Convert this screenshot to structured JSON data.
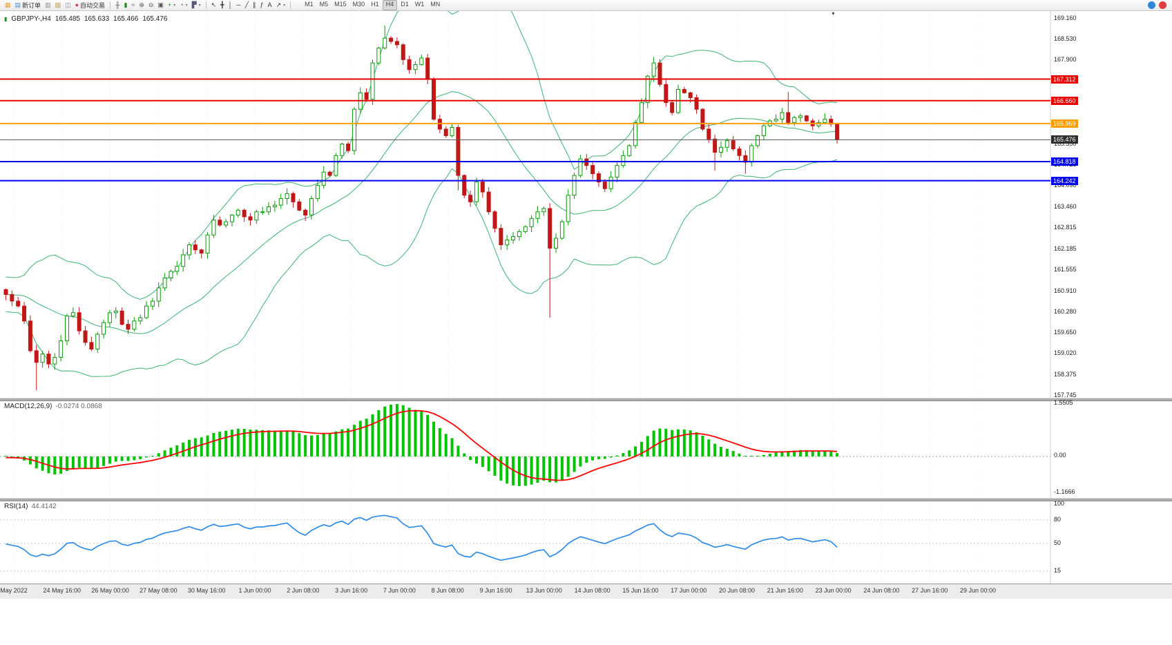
{
  "toolbar": {
    "file_group": [
      {
        "icon": "app-logo-icon",
        "name": "app-logo"
      },
      {
        "icon": "new-order-icon",
        "name": "new-order-button",
        "label": "新订单"
      },
      {
        "icon": "charts-icon",
        "name": "charts-button"
      },
      {
        "icon": "profiles-icon",
        "name": "profiles-button"
      },
      {
        "icon": "market-watch-icon",
        "name": "market-watch-button"
      },
      {
        "icon": "autotrading-icon",
        "name": "autotrading-button",
        "label": "自动交易"
      }
    ],
    "chart_group": [
      {
        "icon": "bar-chart-icon",
        "name": "bar-chart-button"
      },
      {
        "icon": "candlestick-icon",
        "name": "candlestick-button"
      },
      {
        "icon": "line-chart-icon",
        "name": "line-chart-button"
      },
      {
        "icon": "zoom-in-icon",
        "name": "zoom-in-button"
      },
      {
        "icon": "zoom-out-icon",
        "name": "zoom-out-button"
      },
      {
        "icon": "tile-windows-icon",
        "name": "tile-windows-button"
      },
      {
        "icon": "indicators-icon",
        "name": "indicators-button",
        "dropdown": true
      },
      {
        "icon": "periods-icon",
        "name": "periods-button",
        "dropdown": true
      },
      {
        "icon": "templates-icon",
        "name": "templates-button",
        "dropdown": true
      }
    ],
    "draw_group": [
      {
        "icon": "cursor-icon",
        "name": "cursor-button"
      },
      {
        "icon": "crosshair-icon",
        "name": "crosshair-button"
      },
      {
        "icon": "vertical-line-icon",
        "name": "vertical-line-button"
      },
      {
        "icon": "horizontal-line-icon",
        "name": "horizontal-line-button"
      },
      {
        "icon": "trendline-icon",
        "name": "trendline-button"
      },
      {
        "icon": "channel-icon",
        "name": "channel-button"
      },
      {
        "icon": "fibonacci-icon",
        "name": "fibonacci-button"
      },
      {
        "icon": "text-icon",
        "name": "text-button"
      },
      {
        "icon": "arrows-icon",
        "name": "arrows-button",
        "dropdown": true
      }
    ],
    "right_icons": [
      {
        "icon": "chat-icon",
        "name": "chat-button"
      },
      {
        "icon": "notification-icon",
        "name": "notification-button"
      }
    ]
  },
  "timeframes": {
    "items": [
      "M1",
      "M5",
      "M15",
      "M30",
      "H1",
      "H4",
      "D1",
      "W1",
      "MN"
    ],
    "active": "H4"
  },
  "symbol_header": {
    "symbol": "GBPJPY-,H4",
    "open": "165.485",
    "high": "165.633",
    "low": "165.466",
    "close": "165.476"
  },
  "indicators": {
    "macd": {
      "label": "MACD(12,26,9)",
      "values": "-0.0274 0.0868",
      "scale_top": "1.5505",
      "scale_zero": "0.00",
      "scale_bottom": "-1.1666"
    },
    "rsi": {
      "label": "RSI(14)",
      "value": "44.4142",
      "scale": [
        "100",
        "80",
        "50",
        "15"
      ]
    }
  },
  "price_axis": {
    "ticks": [
      "169.160",
      "168.530",
      "167.900",
      "165.350",
      "164.725",
      "164.090",
      "163.460",
      "162.815",
      "162.185",
      "161.555",
      "160.910",
      "160.280",
      "159.650",
      "159.020",
      "158.375",
      "157.745"
    ]
  },
  "levels": [
    {
      "label": "167.312",
      "value": 167.312,
      "color": "#E60000",
      "line_width": 2
    },
    {
      "label": "166.660",
      "value": 166.66,
      "color": "#E60000",
      "line_width": 2
    },
    {
      "label": "165.969",
      "value": 165.969,
      "color": "#FF9D00",
      "line_width": 2
    },
    {
      "label": "165.476",
      "value": 165.476,
      "color": "#5a5a5a",
      "line_width": 1,
      "box_color": "#2e2e2e",
      "current": true
    },
    {
      "label": "164.818",
      "value": 164.818,
      "color": "#0000EE",
      "line_width": 2
    },
    {
      "label": "164.242",
      "value": 164.242,
      "color": "#0000EE",
      "line_width": 2
    }
  ],
  "time_axis": {
    "labels": [
      "May 2022",
      "24 May 16:00",
      "26 May 00:00",
      "27 May 08:00",
      "30 May 16:00",
      "1 Jun 00:00",
      "2 Jun 08:00",
      "3 Jun 16:00",
      "7 Jun 00:00",
      "8 Jun 08:00",
      "9 Jun 16:00",
      "13 Jun 00:00",
      "14 Jun 08:00",
      "15 Jun 16:00",
      "17 Jun 00:00",
      "20 Jun 08:00",
      "21 Jun 16:00",
      "23 Jun 00:00",
      "24 Jun 08:00",
      "27 Jun 16:00",
      "29 Jun 00:00"
    ]
  },
  "chart_data": {
    "type": "candlestick",
    "symbol": "GBPJPY-",
    "timeframe": "H4",
    "price_range_visible": [
      157.745,
      169.16
    ],
    "ohlc_display": {
      "open": 165.485,
      "high": 165.633,
      "low": 165.466,
      "close": 165.476
    },
    "overlays": [
      {
        "name": "Bollinger Bands",
        "period": 20,
        "deviation": 2
      }
    ],
    "subwindows": [
      {
        "name": "MACD",
        "params": [
          12,
          26,
          9
        ],
        "current_values": [
          -0.0274,
          0.0868
        ],
        "scale": [
          1.5505,
          0.0,
          -1.1666
        ]
      },
      {
        "name": "RSI",
        "params": [
          14
        ],
        "current_value": 44.4142,
        "scale": [
          100,
          80,
          50,
          15
        ]
      }
    ],
    "closes": [
      160.8,
      160.6,
      160.45,
      160.0,
      159.1,
      158.75,
      159.0,
      158.7,
      158.9,
      159.4,
      160.15,
      160.25,
      159.7,
      159.35,
      159.15,
      159.6,
      159.95,
      160.25,
      160.3,
      159.9,
      159.75,
      160.0,
      160.1,
      160.45,
      160.6,
      161.0,
      161.3,
      161.5,
      161.65,
      162.0,
      162.3,
      162.15,
      162.05,
      162.6,
      163.05,
      162.9,
      163.0,
      163.2,
      163.35,
      163.15,
      163.05,
      163.3,
      163.3,
      163.45,
      163.5,
      163.7,
      163.85,
      163.6,
      163.35,
      163.2,
      163.7,
      164.1,
      164.5,
      164.4,
      165.0,
      165.35,
      165.15,
      166.4,
      166.9,
      166.7,
      167.8,
      168.25,
      168.55,
      168.45,
      168.35,
      167.9,
      167.6,
      167.75,
      167.95,
      167.3,
      166.1,
      165.8,
      165.6,
      165.85,
      164.4,
      163.8,
      163.6,
      164.2,
      163.9,
      163.3,
      162.8,
      162.3,
      162.45,
      162.55,
      162.7,
      162.85,
      163.1,
      163.3,
      163.4,
      162.2,
      162.5,
      163.0,
      163.8,
      164.4,
      164.9,
      164.7,
      164.45,
      164.2,
      164.0,
      164.35,
      164.7,
      165.0,
      165.3,
      166.0,
      166.6,
      167.4,
      167.8,
      167.15,
      166.6,
      166.3,
      167.0,
      166.9,
      166.75,
      166.4,
      165.8,
      165.5,
      165.1,
      165.25,
      165.45,
      165.2,
      165.0,
      164.8,
      165.3,
      165.6,
      165.9,
      166.05,
      166.1,
      166.3,
      166.0,
      166.15,
      166.2,
      166.05,
      165.9,
      166.0,
      166.1,
      165.95,
      165.476
    ],
    "special_wicks": [
      {
        "i": 5,
        "low": 157.9
      },
      {
        "i": 62,
        "high": 168.93
      },
      {
        "i": 74,
        "low": 163.95
      },
      {
        "i": 89,
        "low": 160.1
      },
      {
        "i": 106,
        "high": 167.98
      },
      {
        "i": 116,
        "low": 164.55
      },
      {
        "i": 121,
        "low": 164.45
      },
      {
        "i": 128,
        "high": 166.92
      }
    ],
    "last_close": 165.476
  },
  "colors": {
    "bull": "#0a9a0a",
    "bear": "#c21717",
    "bollinger": "#3CB371",
    "macd_histogram": "#00C400",
    "macd_signal": "#FF0000",
    "rsi": "#2E8BE6",
    "level_red": "#E60000",
    "level_orange": "#FF9D00",
    "level_blue": "#0000EE",
    "current_price_box": "#2e2e2e"
  }
}
